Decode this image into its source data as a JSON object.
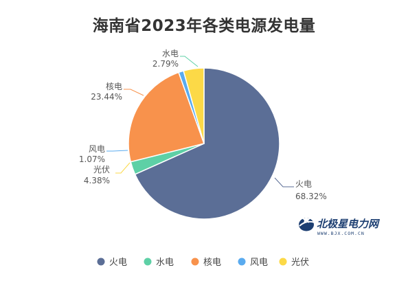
{
  "chart_data": {
    "type": "pie",
    "title": "海南省2023年各类电源发电量",
    "slices": [
      {
        "name": "火电",
        "value": 68.32,
        "label": "68.32%",
        "color": "#5b6e96"
      },
      {
        "name": "水电",
        "value": 2.79,
        "label": "2.79%",
        "color": "#5ed0a6"
      },
      {
        "name": "核电",
        "value": 23.44,
        "label": "23.44%",
        "color": "#f8924c"
      },
      {
        "name": "风电",
        "value": 1.07,
        "label": "1.07%",
        "color": "#5aabef"
      },
      {
        "name": "光伏",
        "value": 4.38,
        "label": "4.38%",
        "color": "#fcd947"
      }
    ],
    "legend_position": "bottom"
  },
  "watermark": {
    "brand": "北极星电力网",
    "url": "WWW.BJX.COM.CN"
  }
}
